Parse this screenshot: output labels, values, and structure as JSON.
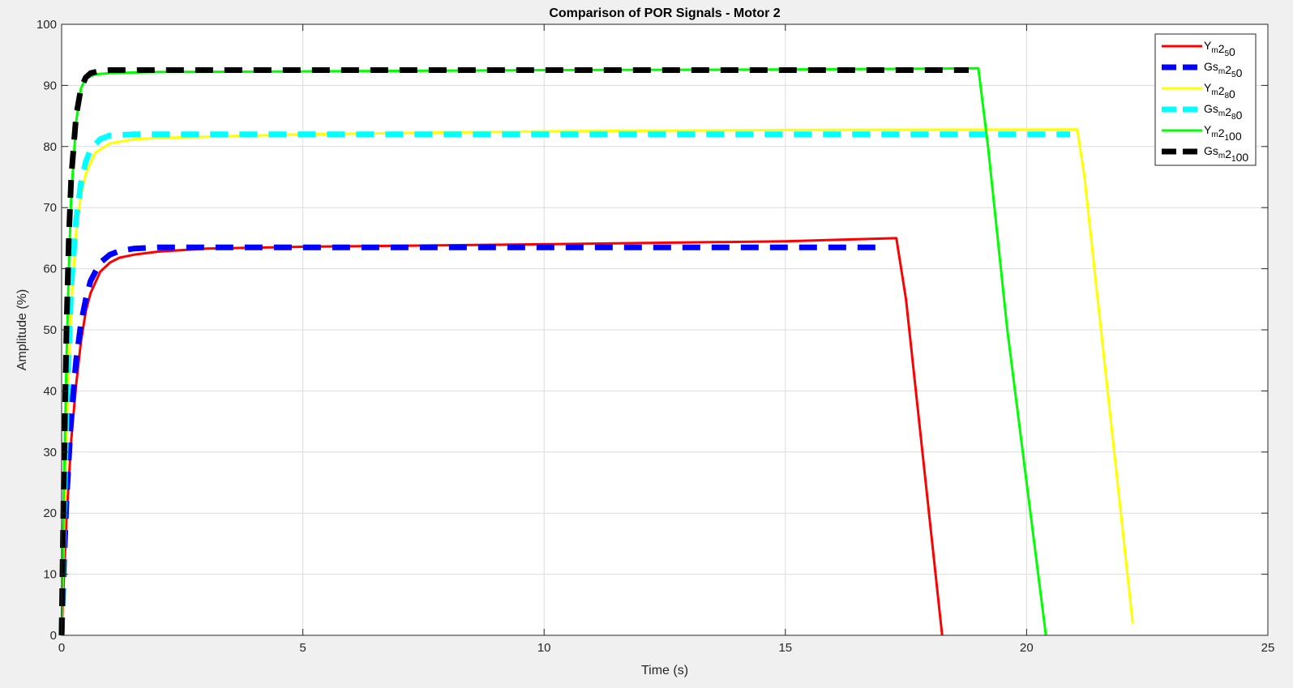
{
  "window": {
    "background": "#f0f0f0"
  },
  "chart_data": {
    "type": "line",
    "title": "Comparison of POR Signals - Motor 2",
    "xlabel": "Time (s)",
    "ylabel": "Amplitude (%)",
    "xlim": [
      0,
      25
    ],
    "ylim": [
      0,
      100
    ],
    "xticks": [
      0,
      5,
      10,
      15,
      20,
      25
    ],
    "yticks": [
      0,
      10,
      20,
      30,
      40,
      50,
      60,
      70,
      80,
      90,
      100
    ],
    "xtick_labels": [
      "0",
      "5",
      "10",
      "15",
      "20",
      "25"
    ],
    "ytick_labels": [
      "0",
      "10",
      "20",
      "30",
      "40",
      "50",
      "60",
      "70",
      "80",
      "90",
      "100"
    ],
    "grid": true,
    "legend_position": "top-right",
    "series": [
      {
        "name": "Ym25 0",
        "legend_main": "Y",
        "legend_sub": "m",
        "legend_mid": "2",
        "legend_sub2": "5",
        "legend_tail": "0",
        "color": "#ff0000",
        "style": "solid",
        "x": [
          0,
          0.05,
          0.1,
          0.2,
          0.3,
          0.4,
          0.5,
          0.6,
          0.8,
          1.0,
          1.2,
          1.5,
          2.0,
          3.0,
          5.0,
          10.0,
          15.0,
          17.3,
          17.5,
          18.25
        ],
        "y": [
          0,
          10,
          19,
          32,
          41,
          48,
          53,
          56,
          59.5,
          61,
          61.8,
          62.3,
          62.8,
          63.3,
          63.6,
          64.0,
          64.5,
          65.0,
          55,
          0
        ]
      },
      {
        "name": "Gsm25 0",
        "legend_main": "Gs",
        "legend_sub": "m",
        "legend_mid": "2",
        "legend_sub2": "5",
        "legend_tail": "0",
        "color": "#0000ff",
        "style": "dashed",
        "x": [
          0,
          0.05,
          0.1,
          0.2,
          0.3,
          0.4,
          0.5,
          0.6,
          0.8,
          1.0,
          1.2,
          1.5,
          2.0,
          5.0,
          10.0,
          15.0,
          17.1
        ],
        "y": [
          0,
          12,
          22,
          36,
          45,
          51,
          55,
          58,
          61,
          62.3,
          62.9,
          63.3,
          63.5,
          63.5,
          63.5,
          63.5,
          63.5
        ]
      },
      {
        "name": "Ym28 0",
        "legend_main": "Y",
        "legend_sub": "m",
        "legend_mid": "2",
        "legend_sub2": "8",
        "legend_tail": "0",
        "color": "#ffff00",
        "style": "solid",
        "x": [
          0,
          0.05,
          0.1,
          0.2,
          0.3,
          0.4,
          0.5,
          0.7,
          1.0,
          1.5,
          2.0,
          3.0,
          5.0,
          10.0,
          15.0,
          21.05,
          21.2,
          22.2
        ],
        "y": [
          0,
          18,
          33,
          54,
          66,
          72,
          75.5,
          79,
          80.5,
          81.2,
          81.4,
          81.6,
          82.0,
          82.5,
          82.7,
          82.8,
          75,
          2
        ]
      },
      {
        "name": "Gsm28 0",
        "legend_main": "Gs",
        "legend_sub": "m",
        "legend_mid": "2",
        "legend_sub2": "8",
        "legend_tail": "0",
        "color": "#00ffff",
        "style": "dashed",
        "x": [
          0,
          0.05,
          0.1,
          0.2,
          0.3,
          0.4,
          0.5,
          0.6,
          0.8,
          1.0,
          1.5,
          2.0,
          5.0,
          10.0,
          15.0,
          20.9
        ],
        "y": [
          0,
          20,
          36,
          57,
          68,
          74,
          77.5,
          79.5,
          81.2,
          81.8,
          82.0,
          82.0,
          82.0,
          82.0,
          82.0,
          82.0
        ]
      },
      {
        "name": "Ym21 00",
        "legend_main": "Y",
        "legend_sub": "m",
        "legend_mid": "2",
        "legend_sub2": "1",
        "legend_tail": "00",
        "color": "#00ff00",
        "style": "solid",
        "x": [
          0,
          0.05,
          0.1,
          0.15,
          0.2,
          0.3,
          0.4,
          0.5,
          0.7,
          1.0,
          2.0,
          5.0,
          10.0,
          15.0,
          19.0,
          19.2,
          19.6,
          20.0,
          20.4
        ],
        "y": [
          0,
          25,
          45,
          60,
          72,
          84,
          89.5,
          91.2,
          91.8,
          92.0,
          92.2,
          92.3,
          92.5,
          92.6,
          92.8,
          80,
          50,
          25,
          0
        ]
      },
      {
        "name": "Gsm21 00",
        "legend_main": "Gs",
        "legend_sub": "m",
        "legend_mid": "2",
        "legend_sub2": "1",
        "legend_tail": "00",
        "color": "#000000",
        "style": "dashed",
        "x": [
          0,
          0.05,
          0.1,
          0.15,
          0.2,
          0.3,
          0.4,
          0.5,
          0.6,
          0.8,
          1.0,
          5.0,
          10.0,
          15.0,
          18.8
        ],
        "y": [
          0,
          28,
          50,
          65,
          75,
          85,
          89.5,
          91.3,
          92.0,
          92.4,
          92.5,
          92.5,
          92.5,
          92.5,
          92.5
        ]
      }
    ]
  }
}
